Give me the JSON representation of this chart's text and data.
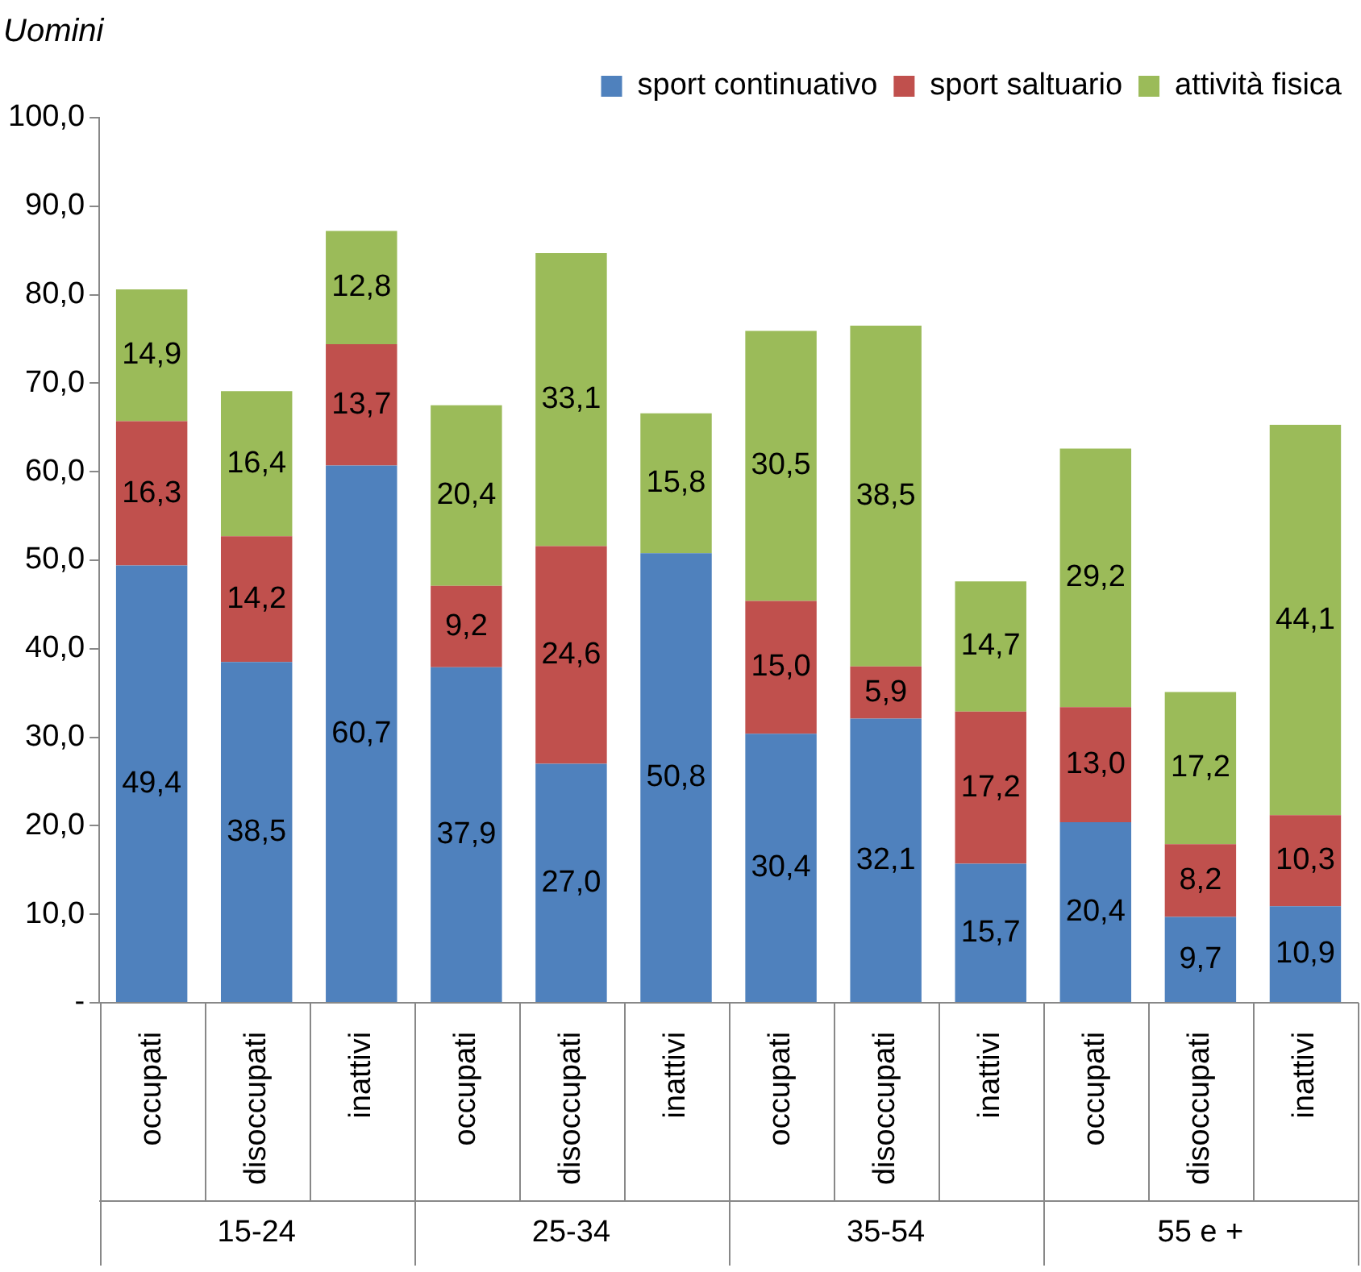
{
  "chart_data": {
    "type": "bar",
    "title": "Uomini",
    "stacked": true,
    "legend": "top right",
    "grid": false,
    "categories": [
      "occupati",
      "disoccupati",
      "inattivi",
      "occupati",
      "disoccupati",
      "inattivi",
      "occupati",
      "disoccupati",
      "inattivi",
      "occupati",
      "disoccupati",
      "inattivi"
    ],
    "annotations": [
      "15-24",
      "25-34",
      "35-54",
      "55 e +"
    ],
    "ylim": [
      0,
      100
    ],
    "yticks": [
      {
        "value": 0,
        "label": "-"
      },
      {
        "value": 10,
        "label": "10,0"
      },
      {
        "value": 20,
        "label": "20,0"
      },
      {
        "value": 30,
        "label": "30,0"
      },
      {
        "value": 40,
        "label": "40,0"
      },
      {
        "value": 50,
        "label": "50,0"
      },
      {
        "value": 60,
        "label": "60,0"
      },
      {
        "value": 70,
        "label": "70,0"
      },
      {
        "value": 80,
        "label": "80,0"
      },
      {
        "value": 90,
        "label": "90,0"
      },
      {
        "value": 100,
        "label": "100,0"
      }
    ],
    "series": [
      {
        "name": "sport continuativo",
        "color": "#4f81bd",
        "values": [
          49.4,
          38.5,
          60.7,
          37.9,
          27.0,
          50.8,
          30.4,
          32.1,
          15.7,
          20.4,
          9.7,
          10.9
        ],
        "value_labels": [
          "49,4",
          "38,5",
          "60,7",
          "37,9",
          "27,0",
          "50,8",
          "30,4",
          "32,1",
          "15,7",
          "20,4",
          "9,7",
          "10,9"
        ]
      },
      {
        "name": "sport saltuario",
        "color": "#c0504d",
        "values": [
          16.3,
          14.2,
          13.7,
          9.2,
          24.6,
          null,
          15.0,
          5.9,
          17.2,
          13.0,
          8.2,
          10.3
        ],
        "value_labels": [
          "16,3",
          "14,2",
          "13,7",
          "9,2",
          "24,6",
          null,
          "15,0",
          "5,9",
          "17,2",
          "13,0",
          "8,2",
          "10,3"
        ]
      },
      {
        "name": "attività fisica",
        "color": "#9bbb59",
        "values": [
          14.9,
          16.4,
          12.8,
          20.4,
          33.1,
          15.8,
          30.5,
          38.5,
          14.7,
          29.2,
          17.2,
          44.1
        ],
        "value_labels": [
          "14,9",
          "16,4",
          "12,8",
          "20,4",
          "33,1",
          "15,8",
          "30,5",
          "38,5",
          "14,7",
          "29,2",
          "17,2",
          "44,1"
        ]
      }
    ]
  }
}
